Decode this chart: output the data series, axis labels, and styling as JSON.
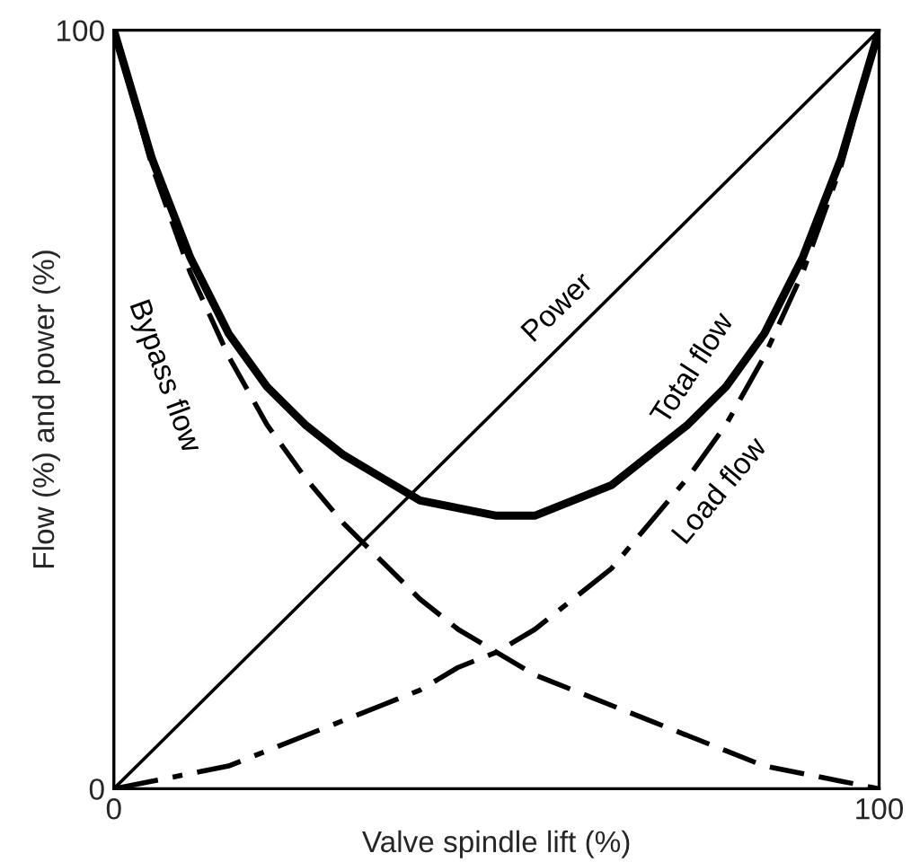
{
  "chart_data": {
    "type": "line",
    "xlabel": "Valve spindle lift (%)",
    "ylabel": "Flow (%) and power (%)",
    "x": [
      0,
      5,
      10,
      15,
      20,
      25,
      30,
      35,
      40,
      45,
      50,
      55,
      60,
      65,
      70,
      75,
      80,
      85,
      90,
      95,
      100
    ],
    "series": [
      {
        "name": "Power",
        "color": "#000000",
        "line_style": "solid",
        "values": [
          0,
          5,
          10,
          15,
          20,
          25,
          30,
          35,
          40,
          45,
          50,
          55,
          60,
          65,
          70,
          75,
          80,
          85,
          90,
          95,
          100
        ]
      },
      {
        "name": "Total flow",
        "color": "#000000",
        "line_style": "solid",
        "values": [
          100,
          83,
          70,
          60,
          53,
          48,
          44,
          41,
          38,
          37,
          36,
          36,
          38,
          40,
          44,
          48,
          53,
          60,
          70,
          83,
          100
        ]
      },
      {
        "name": "Bypass flow",
        "color": "#000000",
        "line_style": "dashed",
        "values": [
          100,
          82,
          68,
          57,
          48,
          41,
          35,
          30,
          25,
          21,
          18,
          15,
          13,
          11,
          9,
          7,
          5,
          3,
          2,
          1,
          0
        ]
      },
      {
        "name": "Load flow",
        "color": "#000000",
        "line_style": "dashdot",
        "values": [
          0,
          1,
          2,
          3,
          5,
          7,
          9,
          11,
          13,
          16,
          18,
          21,
          25,
          29,
          35,
          41,
          48,
          57,
          68,
          82,
          100
        ]
      }
    ],
    "xlim": [
      0,
      100
    ],
    "ylim": [
      0,
      100
    ],
    "xticks": [
      0,
      100
    ],
    "yticks": [
      0,
      100
    ],
    "legend": false,
    "marker": "none"
  }
}
